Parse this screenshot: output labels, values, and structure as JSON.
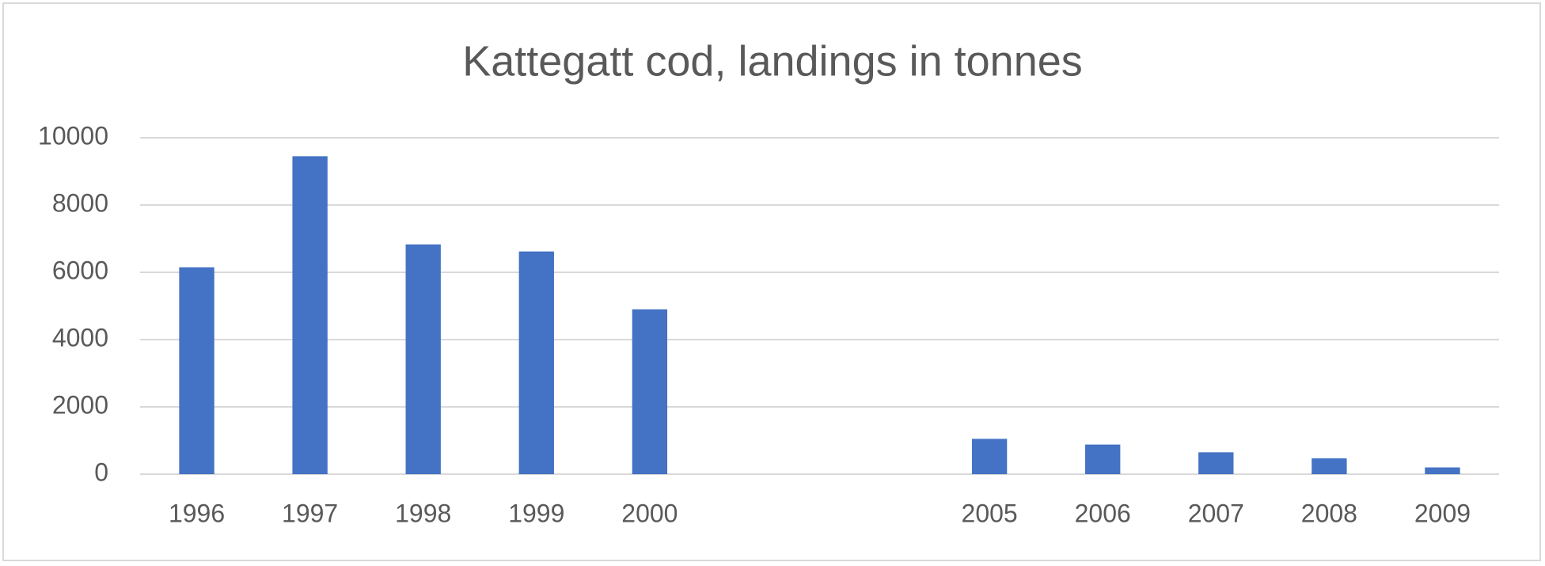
{
  "chart_data": {
    "type": "bar",
    "title": "Kattegatt cod, landings in tonnes",
    "categories": [
      "1996",
      "1997",
      "1998",
      "1999",
      "2000",
      null,
      null,
      "2005",
      "2006",
      "2007",
      "2008",
      "2009"
    ],
    "values": [
      6150,
      9450,
      6830,
      6620,
      4900,
      null,
      null,
      1050,
      880,
      650,
      470,
      200
    ],
    "color": "#4472c4",
    "ylim": [
      0,
      10000
    ],
    "yticks": [
      0,
      2000,
      4000,
      6000,
      8000,
      10000
    ],
    "grid": true
  }
}
